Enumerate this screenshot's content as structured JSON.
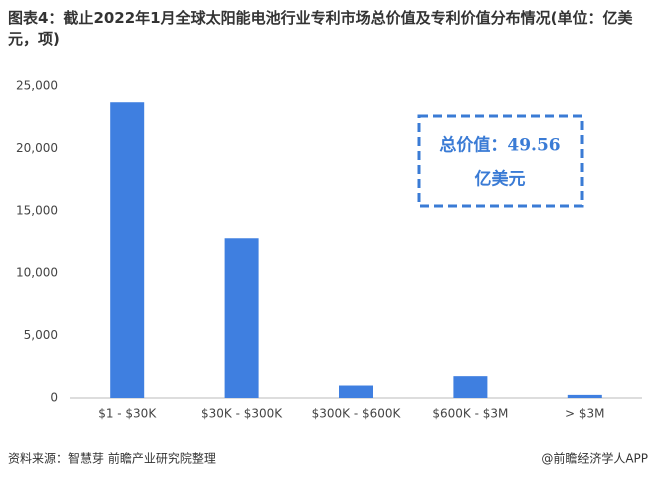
{
  "chart_data": {
    "type": "bar",
    "title": "图表4：截止2022年1月全球太阳能电池行业专利市场总价值及专利价值分布情况(单位：亿美元，项)",
    "categories": [
      "$1 - $30K",
      "$30K - $300K",
      "$300K - $600K",
      "$600K - $3M",
      "> $3M"
    ],
    "values": [
      23700,
      12800,
      1000,
      1750,
      250
    ],
    "color": "#3f7fe0",
    "ylim": [
      0,
      25000
    ],
    "yticks": [
      0,
      {
        "value": 5000,
        "label": "5,000"
      },
      {
        "value": 10000,
        "label": "10,000"
      },
      {
        "value": 15000,
        "label": "15,000"
      },
      {
        "value": 20000,
        "label": "20,000"
      },
      {
        "value": 25000,
        "label": "25,000"
      }
    ],
    "grid": false,
    "annotation": [
      "总价值：49.56",
      "亿美元"
    ],
    "source": "资料来源：智慧芽 前瞻产业研究院整理",
    "brand": "@前瞻经济学人APP"
  }
}
